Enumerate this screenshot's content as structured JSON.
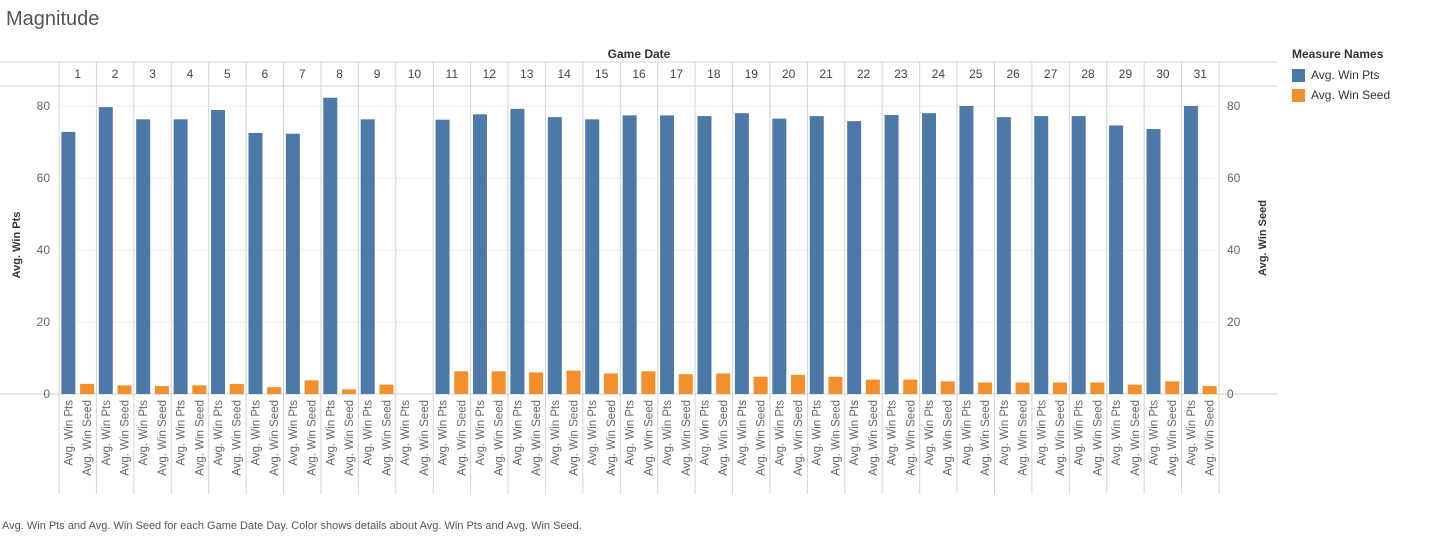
{
  "title": "Magnitude",
  "caption": "Avg. Win Pts and Avg. Win Seed for each Game Date Day.  Color shows details about Avg. Win Pts and Avg. Win Seed.",
  "legend": {
    "title": "Measure Names",
    "items": [
      {
        "label": "Avg. Win Pts",
        "color": "#4e79a7"
      },
      {
        "label": "Avg. Win Seed",
        "color": "#f28e2b"
      }
    ]
  },
  "chart_data": {
    "type": "bar",
    "column_header": "Game Date",
    "ylabel_left": "Avg. Win Pts",
    "ylabel_right": "Avg. Win Seed",
    "ylim": [
      0,
      85
    ],
    "yticks": [
      0,
      20,
      40,
      60,
      80
    ],
    "categories": [
      "1",
      "2",
      "3",
      "4",
      "5",
      "6",
      "7",
      "8",
      "9",
      "10",
      "11",
      "12",
      "13",
      "14",
      "15",
      "16",
      "17",
      "18",
      "19",
      "20",
      "21",
      "22",
      "23",
      "24",
      "25",
      "26",
      "27",
      "28",
      "29",
      "30",
      "31"
    ],
    "series_labels": [
      "Avg. Win Pts",
      "Avg. Win Seed"
    ],
    "series": [
      {
        "name": "Avg. Win Pts",
        "color": "#4e79a7",
        "values": [
          72.8,
          79.7,
          76.3,
          76.3,
          78.9,
          72.5,
          72.3,
          82.3,
          76.3,
          null,
          76.2,
          77.7,
          79.2,
          76.9,
          76.3,
          77.4,
          77.4,
          77.2,
          78.0,
          76.5,
          77.2,
          75.8,
          77.5,
          78.0,
          80.0,
          76.9,
          77.2,
          77.2,
          74.6,
          73.6,
          80.0
        ]
      },
      {
        "name": "Avg. Win Seed",
        "color": "#f28e2b",
        "values": [
          2.8,
          2.4,
          2.2,
          2.4,
          2.8,
          1.9,
          3.8,
          1.3,
          2.6,
          null,
          6.3,
          6.3,
          6.0,
          6.5,
          5.7,
          6.3,
          5.5,
          5.7,
          4.8,
          5.3,
          4.8,
          4.0,
          4.0,
          3.5,
          3.2,
          3.2,
          3.2,
          3.2,
          2.6,
          3.5,
          2.2
        ]
      }
    ]
  }
}
